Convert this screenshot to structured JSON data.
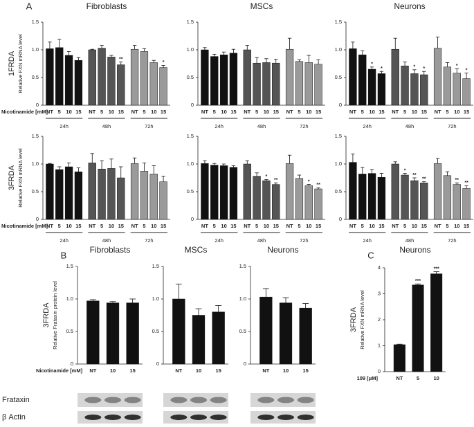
{
  "chart_data": [
    {
      "type": "bar",
      "panel": "A",
      "title": "Fibroblasts",
      "row_label": "1FRDA",
      "ylabel": "Relative FXN mRNA level",
      "xlabel": "Nicotinamide [mM]",
      "categories": [
        "NT",
        "5",
        "10",
        "15"
      ],
      "ylim": [
        0,
        1.5
      ],
      "yticks": [
        0,
        0.5,
        {
          "value": 1,
          "label": "1.0"
        },
        1.5
      ],
      "series": [
        {
          "name": "24h",
          "color": "#111111",
          "values": [
            1.02,
            1.04,
            0.9,
            0.81
          ],
          "errors": [
            0.12,
            0.15,
            0.07,
            0.05
          ],
          "significance": [
            null,
            null,
            null,
            null
          ]
        },
        {
          "name": "48h",
          "color": "#555555",
          "values": [
            1.0,
            1.03,
            0.87,
            0.73
          ],
          "errors": [
            0.01,
            0.05,
            0.03,
            0.05
          ],
          "significance": [
            null,
            null,
            null,
            "**"
          ]
        },
        {
          "name": "72h",
          "color": "#9a9a9a",
          "values": [
            1.01,
            0.97,
            0.77,
            0.68
          ],
          "errors": [
            0.07,
            0.05,
            0.04,
            0.04
          ],
          "significance": [
            null,
            null,
            null,
            "*"
          ]
        }
      ]
    },
    {
      "type": "bar",
      "title": "MSCs",
      "categories": [
        "NT",
        "5",
        "10",
        "15"
      ],
      "ylim": [
        0,
        1.5
      ],
      "yticks": [
        0,
        0.5,
        {
          "value": 1,
          "label": "1.0"
        },
        1.5
      ],
      "series": [
        {
          "name": "24h",
          "color": "#111111",
          "values": [
            1.0,
            0.88,
            0.91,
            0.94
          ],
          "errors": [
            0.04,
            0.04,
            0.05,
            0.07
          ],
          "significance": [
            null,
            null,
            null,
            null
          ]
        },
        {
          "name": "48h",
          "color": "#555555",
          "values": [
            1.0,
            0.76,
            0.77,
            0.76
          ],
          "errors": [
            0.08,
            0.1,
            0.07,
            0.07
          ],
          "significance": [
            null,
            null,
            null,
            null
          ]
        },
        {
          "name": "72h",
          "color": "#9a9a9a",
          "values": [
            1.01,
            0.79,
            0.77,
            0.74
          ],
          "errors": [
            0.2,
            0.03,
            0.13,
            0.08
          ],
          "significance": [
            null,
            null,
            null,
            null
          ]
        }
      ]
    },
    {
      "type": "bar",
      "title": "Neurons",
      "categories": [
        "NT",
        "5",
        "10",
        "15"
      ],
      "ylim": [
        0,
        1.5
      ],
      "yticks": [
        0,
        0.5,
        {
          "value": 1,
          "label": "1.0"
        },
        1.5
      ],
      "series": [
        {
          "name": "24h",
          "color": "#111111",
          "values": [
            1.02,
            0.91,
            0.65,
            0.57
          ],
          "errors": [
            0.12,
            0.07,
            0.04,
            0.04
          ],
          "significance": [
            null,
            null,
            "*",
            "*"
          ]
        },
        {
          "name": "48h",
          "color": "#555555",
          "values": [
            1.01,
            0.71,
            0.57,
            0.55
          ],
          "errors": [
            0.2,
            0.07,
            0.07,
            0.06
          ],
          "significance": [
            null,
            null,
            "*",
            "*"
          ]
        },
        {
          "name": "72h",
          "color": "#9a9a9a",
          "values": [
            1.03,
            0.69,
            0.58,
            0.48
          ],
          "errors": [
            0.2,
            0.08,
            0.08,
            0.1
          ],
          "significance": [
            null,
            null,
            "*",
            "*"
          ]
        }
      ]
    },
    {
      "type": "bar",
      "row_label": "3FRDA",
      "ylabel": "Relative FXN mRNA level",
      "xlabel": "Nicotinamide [mM]",
      "categories": [
        "NT",
        "5",
        "10",
        "15"
      ],
      "ylim": [
        0,
        1.5
      ],
      "yticks": [
        0,
        0.5,
        {
          "value": 1,
          "label": "1.0"
        },
        1.5
      ],
      "series": [
        {
          "name": "24h",
          "color": "#111111",
          "values": [
            1.0,
            0.9,
            0.95,
            0.86
          ],
          "errors": [
            0.01,
            0.05,
            0.07,
            0.07
          ],
          "significance": [
            null,
            null,
            null,
            null
          ]
        },
        {
          "name": "48h",
          "color": "#555555",
          "values": [
            1.02,
            0.91,
            0.92,
            0.75
          ],
          "errors": [
            0.17,
            0.15,
            0.17,
            0.2
          ],
          "significance": [
            null,
            null,
            null,
            null
          ]
        },
        {
          "name": "72h",
          "color": "#9a9a9a",
          "values": [
            1.01,
            0.87,
            0.82,
            0.68
          ],
          "errors": [
            0.1,
            0.15,
            0.15,
            0.1
          ],
          "significance": [
            null,
            null,
            null,
            null
          ]
        }
      ]
    },
    {
      "type": "bar",
      "categories": [
        "NT",
        "5",
        "10",
        "15"
      ],
      "ylim": [
        0,
        1.5
      ],
      "yticks": [
        0,
        0.5,
        {
          "value": 1,
          "label": "1.0"
        },
        1.5
      ],
      "series": [
        {
          "name": "24h",
          "color": "#111111",
          "values": [
            1.01,
            0.98,
            0.97,
            0.94
          ],
          "errors": [
            0.05,
            0.03,
            0.03,
            0.03
          ],
          "significance": [
            null,
            null,
            null,
            null
          ]
        },
        {
          "name": "48h",
          "color": "#555555",
          "values": [
            1.0,
            0.78,
            0.7,
            0.63
          ],
          "errors": [
            0.06,
            0.06,
            0.02,
            0.03
          ],
          "significance": [
            null,
            null,
            "*",
            "**"
          ]
        },
        {
          "name": "72h",
          "color": "#9a9a9a",
          "values": [
            1.01,
            0.74,
            0.61,
            0.55
          ],
          "errors": [
            0.15,
            0.06,
            0.02,
            0.02
          ],
          "significance": [
            null,
            null,
            "*",
            "**"
          ]
        }
      ]
    },
    {
      "type": "bar",
      "categories": [
        "NT",
        "5",
        "10",
        "15"
      ],
      "ylim": [
        0,
        1.5
      ],
      "yticks": [
        0,
        0.5,
        {
          "value": 1,
          "label": "1.0"
        },
        1.5
      ],
      "series": [
        {
          "name": "24h",
          "color": "#111111",
          "values": [
            1.03,
            0.82,
            0.83,
            0.76
          ],
          "errors": [
            0.15,
            0.12,
            0.07,
            0.07
          ],
          "significance": [
            null,
            null,
            null,
            null
          ]
        },
        {
          "name": "48h",
          "color": "#555555",
          "values": [
            1.0,
            0.8,
            0.7,
            0.66
          ],
          "errors": [
            0.04,
            0.03,
            0.05,
            0.02
          ],
          "significance": [
            null,
            "*",
            "**",
            "**"
          ]
        },
        {
          "name": "72h",
          "color": "#9a9a9a",
          "values": [
            1.01,
            0.79,
            0.63,
            0.56
          ],
          "errors": [
            0.09,
            0.07,
            0.03,
            0.05
          ],
          "significance": [
            null,
            null,
            "**",
            "**"
          ]
        }
      ]
    },
    {
      "type": "bar",
      "panel": "B",
      "title": "Fibroblasts",
      "row_label": "3FRDA",
      "ylabel": "Relative Frataxin protein level",
      "xlabel": "Nicotinamide [mM]",
      "blot_labels": [
        "Frataxin",
        "β Actin"
      ],
      "categories": [
        "NT",
        "10",
        "15"
      ],
      "values": [
        0.97,
        0.94,
        0.94
      ],
      "errors": [
        0.02,
        0.02,
        0.06
      ],
      "color": "#111111",
      "ylim": [
        0,
        1.5
      ],
      "yticks": [
        0,
        0.5,
        {
          "value": 1,
          "label": "1.0"
        },
        1.5
      ]
    },
    {
      "type": "bar",
      "title": "MSCs",
      "categories": [
        "NT",
        "10",
        "15"
      ],
      "values": [
        1.0,
        0.75,
        0.8
      ],
      "errors": [
        0.23,
        0.1,
        0.1
      ],
      "color": "#111111",
      "ylim": [
        0,
        1.5
      ],
      "yticks": [
        0,
        0.5,
        {
          "value": 1,
          "label": "1.0"
        },
        1.5
      ]
    },
    {
      "type": "bar",
      "title": "Neurons",
      "categories": [
        "NT",
        "10",
        "15"
      ],
      "values": [
        1.03,
        0.94,
        0.86
      ],
      "errors": [
        0.13,
        0.08,
        0.07
      ],
      "color": "#111111",
      "ylim": [
        0,
        1.5
      ],
      "yticks": [
        0,
        0.5,
        {
          "value": 1,
          "label": "1.0"
        },
        1.5
      ]
    },
    {
      "type": "bar",
      "panel": "C",
      "title": "Neurons",
      "row_label": "3FRDA",
      "ylabel": "Relative FXN mRNA level",
      "xlabel": "109 [μM]",
      "categories": [
        "NT",
        "5",
        "10"
      ],
      "values": [
        1.04,
        3.34,
        3.77
      ],
      "errors": [
        0.02,
        0.04,
        0.08
      ],
      "significance": [
        null,
        "***",
        "***"
      ],
      "color": "#111111",
      "ylim": [
        0,
        4
      ],
      "yticks": [
        0,
        1,
        2,
        3,
        4
      ]
    }
  ]
}
